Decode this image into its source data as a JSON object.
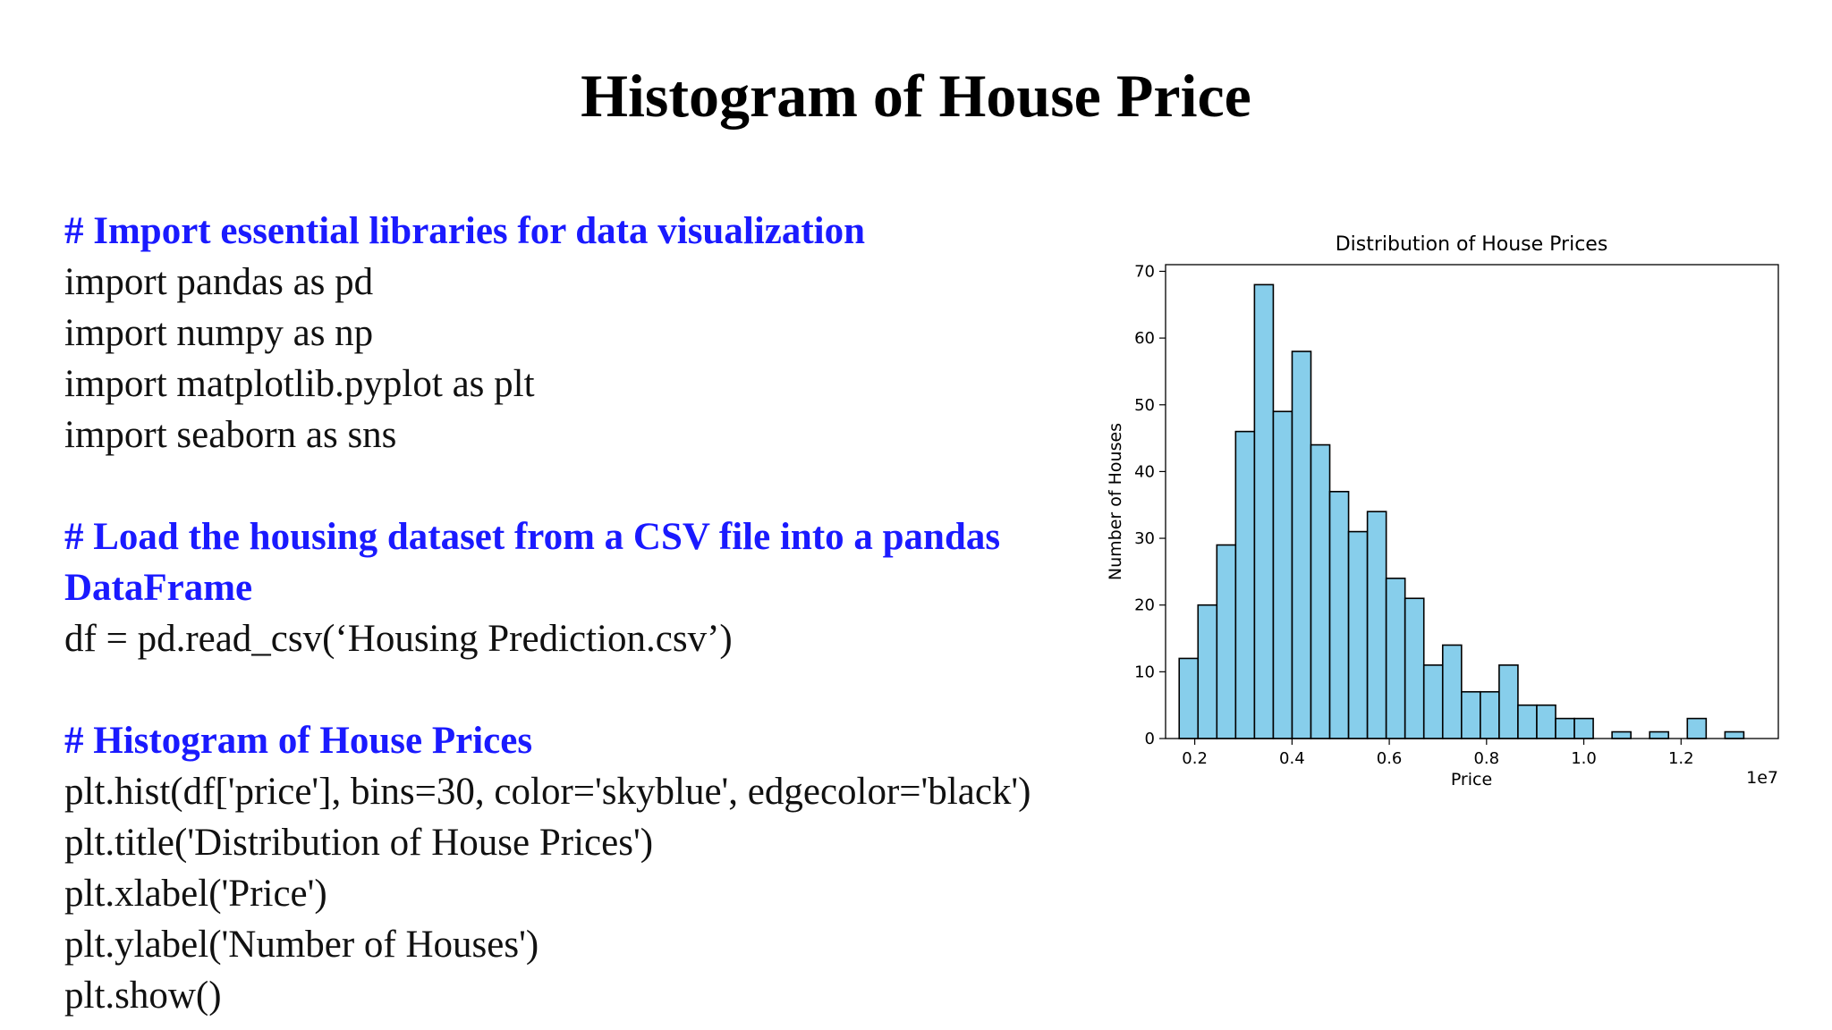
{
  "slide": {
    "title": "Histogram of House Price",
    "comment_color": "#1a1aff",
    "code_color": "#111111"
  },
  "code_lines": [
    {
      "type": "comment",
      "text": "# Import essential libraries for data visualization"
    },
    {
      "type": "code",
      "text": "import pandas as pd"
    },
    {
      "type": "code",
      "text": "import numpy as np"
    },
    {
      "type": "code",
      "text": "import matplotlib.pyplot as plt"
    },
    {
      "type": "code",
      "text": "import seaborn as sns"
    },
    {
      "type": "blank",
      "text": ""
    },
    {
      "type": "comment",
      "text": "# Load the housing dataset from a CSV file into a pandas DataFrame"
    },
    {
      "type": "code",
      "text": "df = pd.read_csv(‘Housing Prediction.csv’)"
    },
    {
      "type": "blank",
      "text": ""
    },
    {
      "type": "comment",
      "text": "# Histogram of House Prices"
    },
    {
      "type": "code",
      "text": "plt.hist(df['price'], bins=30, color='skyblue', edgecolor='black')"
    },
    {
      "type": "code",
      "text": "plt.title('Distribution of House Prices')"
    },
    {
      "type": "code",
      "text": "plt.xlabel('Price')"
    },
    {
      "type": "code",
      "text": "plt.ylabel('Number of Houses')"
    },
    {
      "type": "code",
      "text": "plt.show()"
    }
  ],
  "chart_data": {
    "type": "bar",
    "title": "Distribution of House Prices",
    "xlabel": "Price",
    "ylabel": "Number of Houses",
    "x_offset_label": "1e7",
    "bar_color": "#87ceeb",
    "edge_color": "#000000",
    "xlim": [
      0.14,
      1.4
    ],
    "ylim": [
      0,
      71
    ],
    "x_ticks": [
      0.2,
      0.4,
      0.6,
      0.8,
      1.0,
      1.2
    ],
    "x_tick_labels": [
      "0.2",
      "0.4",
      "0.6",
      "0.8",
      "1.0",
      "1.2"
    ],
    "y_ticks": [
      0,
      10,
      20,
      30,
      40,
      50,
      60,
      70
    ],
    "y_tick_labels": [
      "0",
      "10",
      "20",
      "30",
      "40",
      "50",
      "60",
      "70"
    ],
    "bin_start": 0.168,
    "bin_width": 0.0387,
    "values": [
      12,
      20,
      29,
      46,
      68,
      49,
      58,
      44,
      37,
      31,
      34,
      24,
      21,
      11,
      14,
      7,
      7,
      11,
      5,
      5,
      3,
      3,
      0,
      1,
      0,
      1,
      0,
      3,
      0,
      1
    ],
    "grid": false
  }
}
